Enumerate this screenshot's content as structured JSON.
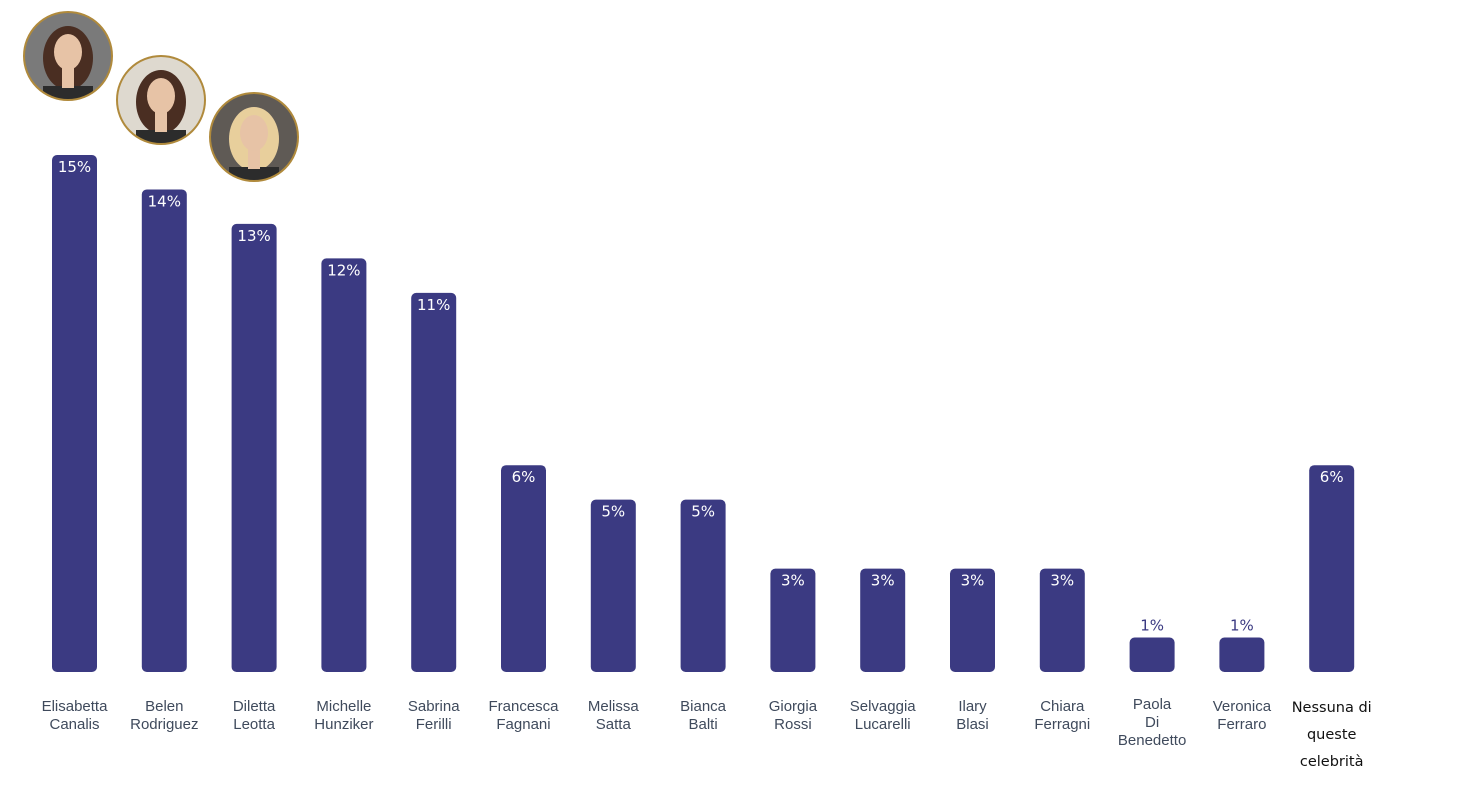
{
  "chart_data": {
    "type": "bar",
    "categories": [
      "Elisabetta Canalis",
      "Belen Rodriguez",
      "Diletta Leotta",
      "Michelle Hunziker",
      "Sabrina Ferilli",
      "Francesca Fagnani",
      "Melissa Satta",
      "Bianca Balti",
      "Giorgia Rossi",
      "Selvaggia Lucarelli",
      "Ilary Blasi",
      "Chiara Ferragni",
      "Paola Di Benedetto",
      "Veronica Ferraro",
      "Nessuna di queste celebrità"
    ],
    "values": [
      15,
      14,
      13,
      12,
      11,
      6,
      5,
      5,
      3,
      3,
      3,
      3,
      1,
      1,
      6
    ],
    "value_labels": [
      "15%",
      "14%",
      "13%",
      "12%",
      "11%",
      "6%",
      "5%",
      "5%",
      "3%",
      "3%",
      "3%",
      "3%",
      "1%",
      "1%",
      "6%"
    ],
    "category_label_lines": [
      [
        "Elisabetta",
        "Canalis"
      ],
      [
        "Belen",
        "Rodriguez"
      ],
      [
        "Diletta",
        "Leotta"
      ],
      [
        "Michelle",
        "Hunziker"
      ],
      [
        "Sabrina",
        "Ferilli"
      ],
      [
        "Francesca",
        "Fagnani"
      ],
      [
        "Melissa",
        "Satta"
      ],
      [
        "Bianca",
        "Balti"
      ],
      [
        "Giorgia",
        "Rossi"
      ],
      [
        "Selvaggia",
        "Lucarelli"
      ],
      [
        "Ilary",
        "Blasi"
      ],
      [
        "Chiara",
        "Ferragni"
      ],
      [
        "Paola",
        "Di",
        "Benedetto"
      ],
      [
        "Veronica",
        "Ferraro"
      ],
      [
        "Nessuna di",
        "queste",
        "celebrità"
      ]
    ],
    "unit": "%",
    "ylim": [
      0,
      15
    ],
    "grid": false,
    "legend": "none",
    "colors": {
      "bar": "#3b3a82",
      "label": "#3f4a5c"
    },
    "avatars": [
      {
        "category": "Elisabetta Canalis",
        "icon": "portrait-photo-icon"
      },
      {
        "category": "Belen Rodriguez",
        "icon": "portrait-photo-icon"
      },
      {
        "category": "Diletta Leotta",
        "icon": "portrait-photo-icon"
      }
    ]
  }
}
